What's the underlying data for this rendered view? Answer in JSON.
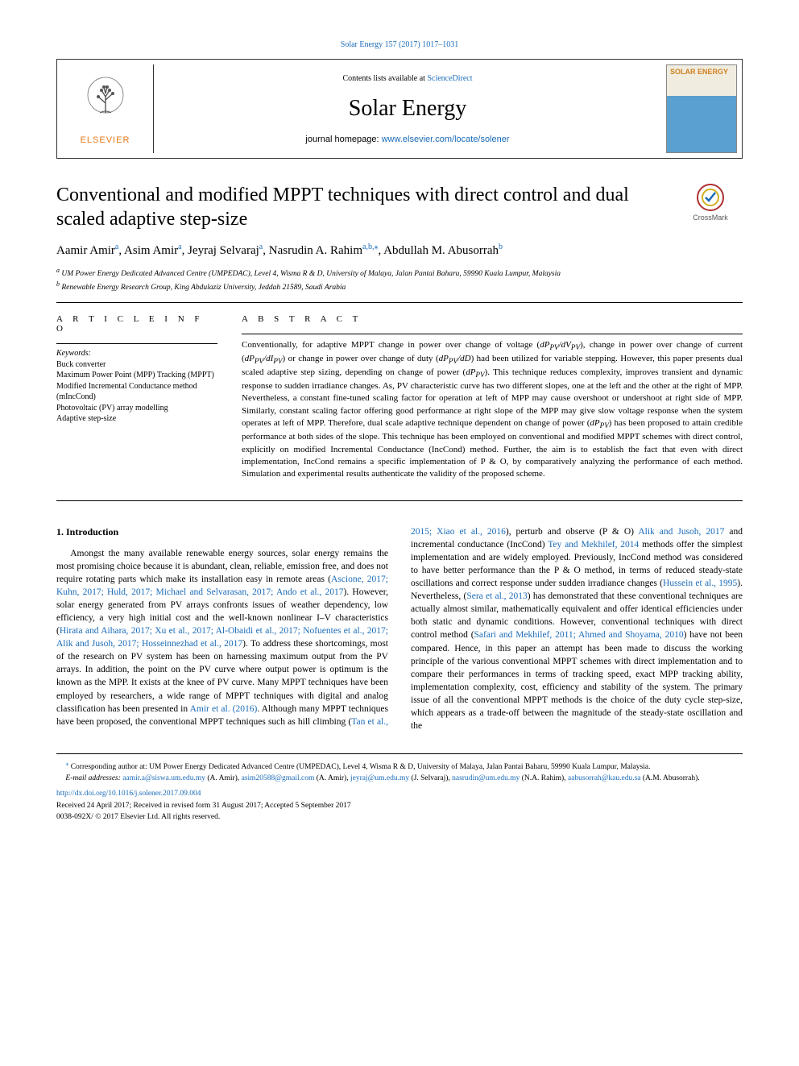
{
  "header": {
    "citation": "Solar Energy 157 (2017) 1017–1031",
    "contents_prefix": "Contents lists available at ",
    "contents_link": "ScienceDirect",
    "journal_name": "Solar Energy",
    "homepage_prefix": "journal homepage: ",
    "homepage_link": "www.elsevier.com/locate/solener",
    "publisher": "ELSEVIER",
    "cover_title": "SOLAR ENERGY"
  },
  "crossmark": {
    "label": "CrossMark"
  },
  "article": {
    "title": "Conventional and modified MPPT techniques with direct control and dual scaled adaptive step-size",
    "authors_html": "Aamir Amir<sup>a</sup>, Asim Amir<sup>a</sup>, Jeyraj Selvaraj<sup>a</sup>, Nasrudin A. Rahim<sup>a,b,</sup><sup class=\"star\">⁎</sup>, Abdullah M. Abusorrah<sup>b</sup>",
    "affiliations": {
      "a": "UM Power Energy Dedicated Advanced Centre (UMPEDAC), Level 4, Wisma R & D, University of Malaya, Jalan Pantai Baharu, 59990 Kuala Lumpur, Malaysia",
      "b": "Renewable Energy Research Group, King Abdulaziz University, Jeddah 21589, Saudi Arabia"
    }
  },
  "info": {
    "heading": "A R T I C L E  I N F O",
    "keywords_label": "Keywords:",
    "keywords": [
      "Buck converter",
      "Maximum Power Point (MPP) Tracking (MPPT)",
      "Modified Incremental Conductance method (mIncCond)",
      "Photovoltaic (PV) array modelling",
      "Adaptive step-size"
    ]
  },
  "abstract": {
    "heading": "A B S T R A C T",
    "body_html": "Conventionally, for adaptive MPPT change in power over change of voltage (<i>dP<sub>PV</sub>/dV<sub>PV</sub></i>), change in power over change of current (<i>dP<sub>PV</sub>/dI<sub>PV</sub></i>) or change in power over change of duty (<i>dP<sub>PV</sub>/dD</i>) had been utilized for variable stepping. However, this paper presents dual scaled adaptive step sizing, depending on change of power (<i>dP<sub>PV</sub></i>). This technique reduces complexity, improves transient and dynamic response to sudden irradiance changes. As, PV characteristic curve has two different slopes, one at the left and the other at the right of MPP. Nevertheless, a constant fine-tuned scaling factor for operation at left of MPP may cause overshoot or undershoot at right side of MPP. Similarly, constant scaling factor offering good performance at right slope of the MPP may give slow voltage response when the system operates at left of MPP. Therefore, dual scale adaptive technique dependent on change of power (<i>dP<sub>PV</sub></i>) has been proposed to attain credible performance at both sides of the slope. This technique has been employed on conventional and modified MPPT schemes with direct control, explicitly on modified Incremental Conductance (IncCond) method. Further, the aim is to establish the fact that even with direct implementation, IncCond remains a specific implementation of P & O, by comparatively analyzing the performance of each method. Simulation and experimental results authenticate the validity of the proposed scheme."
  },
  "body": {
    "section_number": "1.",
    "section_title": "Introduction",
    "paragraph_html": "Amongst the many available renewable energy sources, solar energy remains the most promising choice because it is abundant, clean, reliable, emission free, and does not require rotating parts which make its installation easy in remote areas (<a href=\"#\">Ascione, 2017; Kuhn, 2017; Huld, 2017; Michael and Selvarasan, 2017; Ando et al., 2017</a>). However, solar energy generated from PV arrays confronts issues of weather dependency, low efficiency, a very high initial cost and the well-known nonlinear I–V characteristics (<a href=\"#\">Hirata and Aihara, 2017; Xu et al., 2017; Al-Obaidi et al., 2017; Nofuentes et al., 2017; Alik and Jusoh, 2017; Hosseinnezhad et al., 2017</a>). To address these shortcomings, most of the research on PV system has been on harnessing maximum output from the PV arrays. In addition, the point on the PV curve where output power is optimum is the known as the MPP. It exists at the knee of PV curve. Many MPPT techniques have been employed by researchers, a wide range of MPPT techniques with digital and analog classification has been presented in <a href=\"#\">Amir et al. (2016)</a>. Although many MPPT techniques have been proposed, the conventional MPPT techniques such as hill climbing (<a href=\"#\">Tan et al., 2015; Xiao et al., 2016</a>), perturb and observe (P & O) <a href=\"#\">Alik and Jusoh, 2017</a> and incremental conductance (IncCond) <a href=\"#\">Tey and Mekhilef, 2014</a> methods offer the simplest implementation and are widely employed. Previously, IncCond method was considered to have better performance than the P & O method, in terms of reduced steady-state oscillations and correct response under sudden irradiance changes (<a href=\"#\">Hussein et al., 1995</a>). Nevertheless, (<a href=\"#\">Sera et al., 2013</a>) has demonstrated that these conventional techniques are actually almost similar, mathematically equivalent and offer identical efficiencies under both static and dynamic conditions. However, conventional techniques with direct control method (<a href=\"#\">Safari and Mekhilef, 2011; Ahmed and Shoyama, 2010</a>) have not been compared. Hence, in this paper an attempt has been made to discuss the working principle of the various conventional MPPT schemes with direct implementation and to compare their performances in terms of tracking speed, exact MPP tracking ability, implementation complexity, cost, efficiency and stability of the system. The primary issue of all the conventional MPPT methods is the choice of the duty cycle step-size, which appears as a trade-off between the magnitude of the steady-state oscillation and the"
  },
  "footnotes": {
    "corresponding": "Corresponding author at: UM Power Energy Dedicated Advanced Centre (UMPEDAC), Level 4, Wisma R & D, University of Malaya, Jalan Pantai Baharu, 59990 Kuala Lumpur, Malaysia.",
    "email_label": "E-mail addresses:",
    "emails": [
      {
        "addr": "aamir.a@siswa.um.edu.my",
        "who": "(A. Amir)"
      },
      {
        "addr": "asim20588@gmail.com",
        "who": "(A. Amir)"
      },
      {
        "addr": "jeyraj@um.edu.my",
        "who": "(J. Selvaraj)"
      },
      {
        "addr": "nasrudin@um.edu.my",
        "who": "(N.A. Rahim)"
      },
      {
        "addr": "aabusorrah@kau.edu.sa",
        "who": "(A.M. Abusorrah)"
      }
    ],
    "doi": "http://dx.doi.org/10.1016/j.solener.2017.09.004",
    "received": "Received 24 April 2017; Received in revised form 31 August 2017; Accepted 5 September 2017",
    "copyright": "0038-092X/ © 2017 Elsevier Ltd. All rights reserved."
  },
  "colors": {
    "link": "#1a6bb8",
    "elsevier_orange": "#e67817",
    "text": "#000000",
    "bg": "#ffffff"
  }
}
